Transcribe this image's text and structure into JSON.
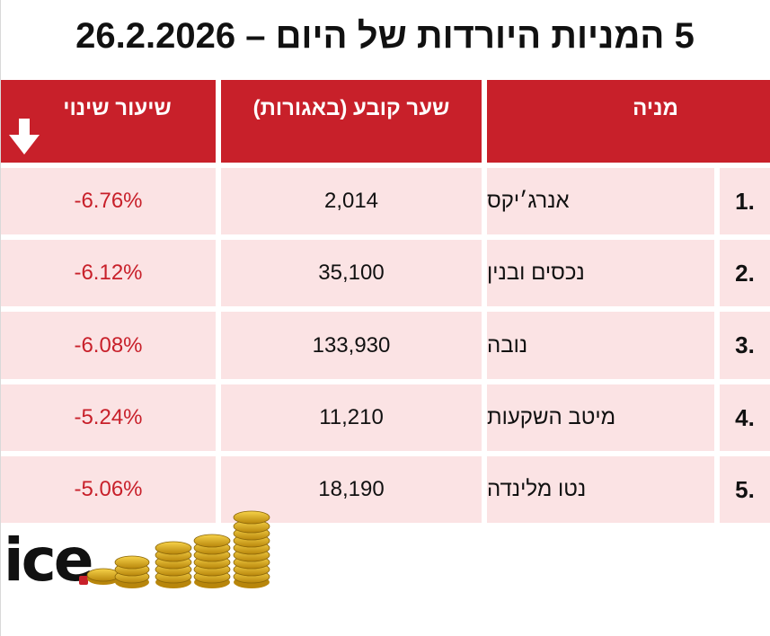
{
  "title": "5 המניות היורדות של היום – 26.2.2026",
  "headers": {
    "stock": "מניה",
    "price": "שער קובע (באגורות)",
    "change": "שיעור שינוי"
  },
  "rows": [
    {
      "rank": "1.",
      "name": "אנרג׳יקס",
      "price": "2,014",
      "change": "-6.76%"
    },
    {
      "rank": "2.",
      "name": "נכסים ובנין",
      "price": "35,100",
      "change": "-6.12%"
    },
    {
      "rank": "3.",
      "name": "נובה",
      "price": "133,930",
      "change": "-6.08%"
    },
    {
      "rank": "4.",
      "name": "מיטב השקעות",
      "price": "11,210",
      "change": "-5.24%"
    },
    {
      "rank": "5.",
      "name": "נטו מלינדה",
      "price": "18,190",
      "change": "-5.06%"
    }
  ],
  "logo": {
    "text": "ice"
  },
  "colors": {
    "accent": "#c8202a",
    "row_bg": "#fbe3e4",
    "negative": "#c8202a"
  },
  "icons": {
    "sort": "arrow-down-icon",
    "decoration": "gold-coins-icon"
  }
}
